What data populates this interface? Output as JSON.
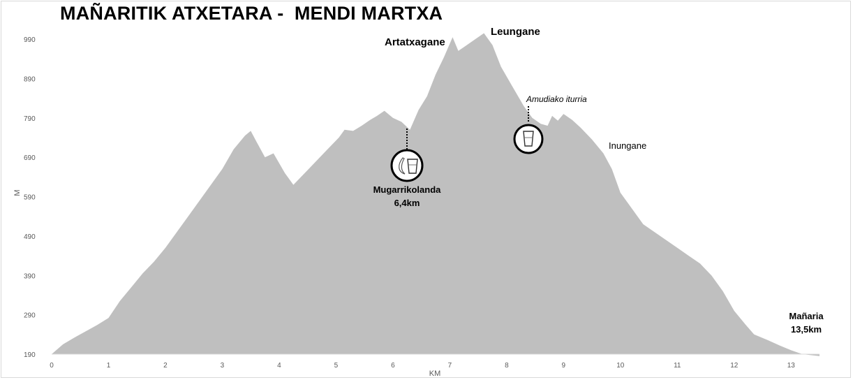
{
  "chart_data": {
    "type": "area",
    "title": "MAÑARITIK ATXETARA -  MENDI MARTXA",
    "xlabel": "KM",
    "ylabel": "M",
    "xlim": [
      0,
      13.5
    ],
    "ylim": [
      190,
      1000
    ],
    "x_ticks": [
      "0",
      "1",
      "2",
      "3",
      "4",
      "5",
      "6",
      "7",
      "8",
      "9",
      "10",
      "11",
      "12",
      "13"
    ],
    "y_ticks": [
      "190",
      "290",
      "390",
      "490",
      "590",
      "690",
      "790",
      "890",
      "990"
    ],
    "grid": false,
    "fill_color": "#bfbfbf",
    "x": [
      0,
      0.2,
      0.4,
      0.6,
      0.8,
      1.0,
      1.2,
      1.4,
      1.6,
      1.8,
      2.0,
      2.2,
      2.4,
      2.6,
      2.8,
      3.0,
      3.2,
      3.4,
      3.5,
      3.6,
      3.75,
      3.9,
      4.1,
      4.25,
      4.45,
      4.65,
      4.85,
      5.05,
      5.15,
      5.3,
      5.45,
      5.6,
      5.72,
      5.85,
      6.0,
      6.15,
      6.3,
      6.45,
      6.6,
      6.75,
      6.9,
      7.05,
      7.15,
      7.3,
      7.45,
      7.6,
      7.75,
      7.9,
      8.1,
      8.3,
      8.45,
      8.6,
      8.72,
      8.8,
      8.9,
      9.0,
      9.15,
      9.3,
      9.5,
      9.7,
      9.85,
      10.0,
      10.2,
      10.4,
      10.6,
      10.8,
      11.0,
      11.2,
      11.4,
      11.6,
      11.8,
      12.0,
      12.2,
      12.35,
      12.6,
      12.8,
      13.0,
      13.2,
      13.5
    ],
    "values": [
      190,
      215,
      232,
      248,
      264,
      282,
      325,
      360,
      395,
      425,
      460,
      500,
      540,
      580,
      620,
      660,
      710,
      745,
      757,
      730,
      690,
      700,
      650,
      620,
      650,
      680,
      710,
      740,
      760,
      757,
      770,
      785,
      795,
      808,
      790,
      780,
      760,
      810,
      845,
      900,
      945,
      995,
      960,
      975,
      990,
      1005,
      975,
      920,
      870,
      820,
      790,
      775,
      770,
      795,
      783,
      800,
      785,
      765,
      735,
      700,
      660,
      600,
      560,
      520,
      500,
      480,
      460,
      440,
      420,
      390,
      350,
      300,
      265,
      240,
      225,
      212,
      200,
      190,
      185
    ],
    "labels": [
      {
        "text": "Artatxagane"
      },
      {
        "text": "Leungane"
      },
      {
        "text": "Amudiako iturria"
      },
      {
        "text": "Inungane"
      },
      {
        "text": "Mugarrikolanda"
      },
      {
        "text": "6,4km"
      },
      {
        "text": "Mañaria"
      },
      {
        "text": "13,5km"
      }
    ],
    "icons": [
      {
        "name": "banana-icon",
        "km": 6.25
      },
      {
        "name": "water-glass-icon",
        "km": 6.25
      },
      {
        "name": "water-glass-icon",
        "km": 8.4
      }
    ]
  }
}
